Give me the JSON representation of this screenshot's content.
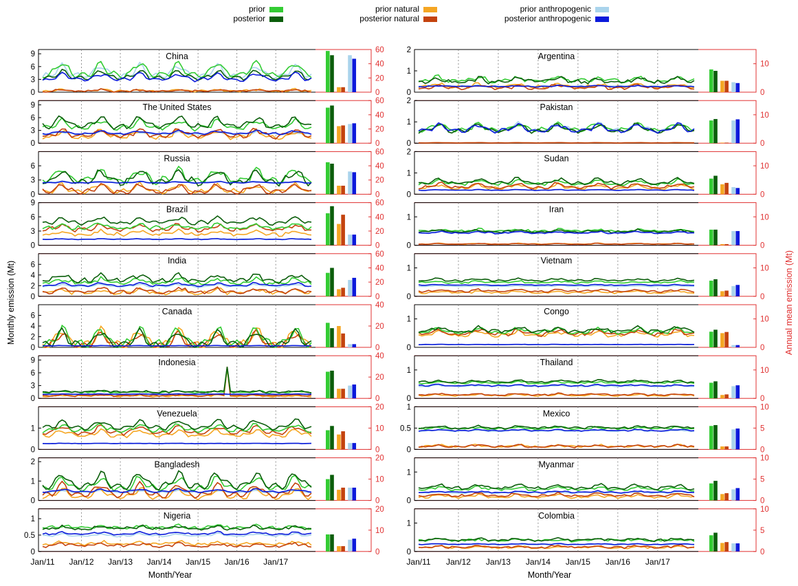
{
  "figure": {
    "y_label_left": "Monthly emission (Mt)",
    "y_label_right": "Annual mean emission (Mt)",
    "x_label": "Month/Year",
    "x_ticks": [
      "Jan/11",
      "Jan/12",
      "Jan/13",
      "Jan/14",
      "Jan/15",
      "Jan/16",
      "Jan/17"
    ]
  },
  "legend": [
    {
      "key": "prior",
      "label": "prior",
      "color": "#33cc33"
    },
    {
      "key": "posterior",
      "label": "posterior",
      "color": "#0b5e0b"
    },
    {
      "key": "prior_natural",
      "label": "prior natural",
      "color": "#f5a623"
    },
    {
      "key": "posterior_natural",
      "label": "posterior natural",
      "color": "#c4430e"
    },
    {
      "key": "prior_anthropogenic",
      "label": "prior anthropogenic",
      "color": "#aad4ec"
    },
    {
      "key": "posterior_anthropogenic",
      "label": "posterior anthropogenic",
      "color": "#0b1adb"
    }
  ],
  "chart_data": [
    {
      "type": "line",
      "title": "China",
      "ylim": [
        0,
        10
      ],
      "yticks": [
        0,
        3,
        6,
        9
      ],
      "rlim": [
        0,
        60
      ],
      "rticks": [
        0,
        20,
        40,
        60
      ],
      "series_params": {
        "prior": [
          5.2,
          2.3,
          0.3
        ],
        "posterior": [
          4.0,
          1.4,
          0.2
        ],
        "prior_natural": [
          0.4,
          0.3,
          0.2
        ],
        "posterior_natural": [
          0.35,
          0.3,
          0.2
        ],
        "prior_anthropogenic": [
          4.8,
          2.0,
          0.2
        ],
        "posterior_anthropogenic": [
          3.5,
          1.1,
          0.2
        ]
      },
      "bars": [
        58,
        52,
        7,
        7,
        52,
        47
      ]
    },
    {
      "type": "line",
      "title": "The United States",
      "ylim": [
        0,
        10
      ],
      "yticks": [
        0,
        3,
        6,
        9
      ],
      "rlim": [
        0,
        60
      ],
      "rticks": [
        0,
        20,
        40,
        60
      ],
      "series_params": {
        "prior": [
          4.3,
          1.5,
          0.3
        ],
        "posterior": [
          4.8,
          1.7,
          0.3
        ],
        "prior_natural": [
          2.0,
          1.2,
          0.3
        ],
        "posterior_natural": [
          2.3,
          1.3,
          0.3
        ],
        "prior_anthropogenic": [
          2.3,
          0.4,
          0.1
        ],
        "posterior_anthropogenic": [
          2.5,
          0.5,
          0.1
        ]
      },
      "bars": [
        50,
        53,
        24,
        25,
        27,
        28
      ]
    },
    {
      "type": "line",
      "title": "Russia",
      "ylim": [
        0,
        9
      ],
      "yticks": [
        0,
        3,
        6
      ],
      "rlim": [
        0,
        60
      ],
      "rticks": [
        0,
        20,
        40,
        60
      ],
      "series_params": {
        "prior": [
          3.8,
          1.8,
          0.4
        ],
        "posterior": [
          3.6,
          2.0,
          0.4
        ],
        "prior_natural": [
          1.2,
          1.2,
          0.3
        ],
        "posterior_natural": [
          1.1,
          1.2,
          0.3
        ],
        "prior_anthropogenic": [
          2.6,
          0.2,
          0.05
        ],
        "posterior_anthropogenic": [
          2.5,
          0.2,
          0.05
        ]
      },
      "bars": [
        45,
        43,
        12,
        12,
        32,
        31
      ]
    },
    {
      "type": "line",
      "title": "Brazil",
      "ylim": [
        0,
        9
      ],
      "yticks": [
        0,
        3,
        6,
        9
      ],
      "rlim": [
        0,
        60
      ],
      "rticks": [
        0,
        20,
        40,
        60
      ],
      "series_params": {
        "prior": [
          4.0,
          0.8,
          0.3
        ],
        "posterior": [
          5.2,
          1.0,
          0.3
        ],
        "prior_natural": [
          2.6,
          0.6,
          0.3
        ],
        "posterior_natural": [
          3.7,
          0.8,
          0.3
        ],
        "prior_anthropogenic": [
          1.3,
          0.1,
          0.05
        ],
        "posterior_anthropogenic": [
          1.3,
          0.1,
          0.05
        ]
      },
      "bars": [
        45,
        55,
        30,
        43,
        15,
        15
      ]
    },
    {
      "type": "line",
      "title": "India",
      "ylim": [
        0,
        8
      ],
      "yticks": [
        0,
        2,
        4,
        6
      ],
      "rlim": [
        0,
        60
      ],
      "rticks": [
        0,
        20,
        40,
        60
      ],
      "series_params": {
        "prior": [
          2.8,
          0.7,
          0.3
        ],
        "posterior": [
          3.4,
          0.9,
          0.3
        ],
        "prior_natural": [
          0.9,
          0.5,
          0.3
        ],
        "posterior_natural": [
          1.1,
          0.6,
          0.3
        ],
        "prior_anthropogenic": [
          2.0,
          0.3,
          0.1
        ],
        "posterior_anthropogenic": [
          2.2,
          0.4,
          0.1
        ]
      },
      "bars": [
        33,
        40,
        10,
        12,
        23,
        26
      ]
    },
    {
      "type": "line",
      "title": "Canada",
      "ylim": [
        0,
        8
      ],
      "yticks": [
        0,
        2,
        4,
        6
      ],
      "rlim": [
        0,
        40
      ],
      "rticks": [
        0,
        20,
        40
      ],
      "series_params": {
        "prior": [
          1.8,
          2.4,
          0.2
        ],
        "posterior": [
          1.5,
          2.0,
          0.2
        ],
        "prior_natural": [
          1.6,
          2.3,
          0.2
        ],
        "posterior_natural": [
          1.3,
          1.9,
          0.2
        ],
        "prior_anthropogenic": [
          0.3,
          0.05,
          0.02
        ],
        "posterior_anthropogenic": [
          0.3,
          0.05,
          0.02
        ]
      },
      "bars": [
        23,
        18,
        20,
        13,
        3,
        3
      ]
    },
    {
      "type": "line",
      "title": "Indonesia",
      "ylim": [
        0,
        10
      ],
      "yticks": [
        0,
        3,
        6,
        9
      ],
      "rlim": [
        0,
        40
      ],
      "rticks": [
        0,
        20,
        40
      ],
      "series_params": {
        "prior": [
          1.5,
          0.2,
          0.2
        ],
        "posterior": [
          1.6,
          0.2,
          0.2
        ],
        "prior_natural": [
          0.6,
          0.2,
          0.2
        ],
        "posterior_natural": [
          0.7,
          0.2,
          0.2
        ],
        "prior_anthropogenic": [
          0.9,
          0.05,
          0.02
        ],
        "posterior_anthropogenic": [
          1.0,
          0.05,
          0.02
        ]
      },
      "bars": [
        25,
        26,
        9,
        9,
        12,
        13
      ],
      "spike_month": 57,
      "spike_value": 7.4
    },
    {
      "type": "line",
      "title": "Venezuela",
      "ylim": [
        0,
        2
      ],
      "yticks": [
        0,
        1
      ],
      "rlim": [
        0,
        20
      ],
      "rticks": [
        0,
        10,
        20
      ],
      "series_params": {
        "prior": [
          1.0,
          0.22,
          0.05
        ],
        "posterior": [
          1.15,
          0.28,
          0.05
        ],
        "prior_natural": [
          0.75,
          0.2,
          0.05
        ],
        "posterior_natural": [
          0.9,
          0.25,
          0.05
        ],
        "prior_anthropogenic": [
          0.28,
          0.01,
          0.01
        ],
        "posterior_anthropogenic": [
          0.28,
          0.01,
          0.01
        ]
      },
      "bars": [
        9,
        11,
        7,
        8.5,
        3,
        3
      ]
    },
    {
      "type": "line",
      "title": "Bangladesh",
      "ylim": [
        0,
        2.2
      ],
      "yticks": [
        0,
        1,
        2
      ],
      "rlim": [
        0,
        20
      ],
      "rticks": [
        0,
        10,
        20
      ],
      "series_params": {
        "prior": [
          0.85,
          0.45,
          0.05
        ],
        "posterior": [
          1.0,
          0.55,
          0.05
        ],
        "prior_natural": [
          0.35,
          0.35,
          0.05
        ],
        "posterior_natural": [
          0.5,
          0.45,
          0.05
        ],
        "prior_anthropogenic": [
          0.45,
          0.08,
          0.02
        ],
        "posterior_anthropogenic": [
          0.5,
          0.1,
          0.02
        ]
      },
      "bars": [
        10,
        12,
        5,
        6,
        6,
        6
      ]
    },
    {
      "type": "line",
      "title": "Nigeria",
      "ylim": [
        0,
        1.3
      ],
      "yticks": [
        0,
        0.5,
        1
      ],
      "rlim": [
        0,
        20
      ],
      "rticks": [
        0,
        10,
        20
      ],
      "series_params": {
        "prior": [
          0.75,
          0.06,
          0.04
        ],
        "posterior": [
          0.72,
          0.06,
          0.04
        ],
        "prior_natural": [
          0.25,
          0.06,
          0.04
        ],
        "posterior_natural": [
          0.2,
          0.06,
          0.04
        ],
        "prior_anthropogenic": [
          0.5,
          0.05,
          0.02
        ],
        "posterior_anthropogenic": [
          0.55,
          0.05,
          0.02
        ]
      },
      "bars": [
        8,
        8,
        2.5,
        2.5,
        5.5,
        6
      ]
    },
    {
      "type": "line",
      "title": "Argentina",
      "ylim": [
        0,
        2
      ],
      "yticks": [
        0,
        1,
        2
      ],
      "rlim": [
        0,
        15
      ],
      "rticks": [
        0,
        10
      ],
      "series_params": {
        "prior": [
          0.6,
          0.15,
          0.08
        ],
        "posterior": [
          0.55,
          0.15,
          0.08
        ],
        "prior_natural": [
          0.3,
          0.12,
          0.06
        ],
        "posterior_natural": [
          0.25,
          0.12,
          0.06
        ],
        "prior_anthropogenic": [
          0.3,
          0.03,
          0.02
        ],
        "posterior_anthropogenic": [
          0.28,
          0.03,
          0.02
        ]
      },
      "bars": [
        8,
        7.5,
        4,
        4,
        3.5,
        3.2
      ]
    },
    {
      "type": "line",
      "title": "Pakistan",
      "ylim": [
        0,
        2
      ],
      "yticks": [
        0,
        1,
        2
      ],
      "rlim": [
        0,
        15
      ],
      "rticks": [
        0,
        10
      ],
      "series_params": {
        "prior": [
          0.75,
          0.25,
          0.05
        ],
        "posterior": [
          0.7,
          0.25,
          0.05
        ],
        "prior_natural": [
          0.02,
          0.01,
          0.0
        ],
        "posterior_natural": [
          0.02,
          0.01,
          0.0
        ],
        "prior_anthropogenic": [
          0.74,
          0.25,
          0.05
        ],
        "posterior_anthropogenic": [
          0.7,
          0.25,
          0.05
        ]
      },
      "bars": [
        8,
        8.5,
        0.2,
        0.2,
        8,
        8.4
      ]
    },
    {
      "type": "line",
      "title": "Sudan",
      "ylim": [
        0,
        2
      ],
      "yticks": [
        0,
        1,
        2
      ],
      "rlim": [
        0,
        15
      ],
      "rticks": [
        0,
        10
      ],
      "series_params": {
        "prior": [
          0.55,
          0.15,
          0.05
        ],
        "posterior": [
          0.6,
          0.18,
          0.05
        ],
        "prior_natural": [
          0.35,
          0.14,
          0.05
        ],
        "posterior_natural": [
          0.4,
          0.16,
          0.05
        ],
        "prior_anthropogenic": [
          0.2,
          0.02,
          0.01
        ],
        "posterior_anthropogenic": [
          0.2,
          0.02,
          0.01
        ]
      },
      "bars": [
        5.5,
        6.5,
        3.5,
        4,
        2.5,
        2.2
      ]
    },
    {
      "type": "line",
      "title": "Iran",
      "ylim": [
        0,
        1.5
      ],
      "yticks": [
        0,
        1
      ],
      "rlim": [
        0,
        15
      ],
      "rticks": [
        0,
        10
      ],
      "series_params": {
        "prior": [
          0.52,
          0.05,
          0.04
        ],
        "posterior": [
          0.5,
          0.05,
          0.03
        ],
        "prior_natural": [
          0.05,
          0.02,
          0.01
        ],
        "posterior_natural": [
          0.05,
          0.02,
          0.01
        ],
        "prior_anthropogenic": [
          0.47,
          0.04,
          0.02
        ],
        "posterior_anthropogenic": [
          0.45,
          0.04,
          0.02
        ]
      },
      "bars": [
        5.5,
        5.5,
        0.4,
        0.4,
        5,
        5
      ]
    },
    {
      "type": "line",
      "title": "Vietnam",
      "ylim": [
        0,
        1.5
      ],
      "yticks": [
        0,
        1
      ],
      "rlim": [
        0,
        15
      ],
      "rticks": [
        0,
        10
      ],
      "series_params": {
        "prior": [
          0.5,
          0.04,
          0.03
        ],
        "posterior": [
          0.58,
          0.05,
          0.03
        ],
        "prior_natural": [
          0.15,
          0.05,
          0.03
        ],
        "posterior_natural": [
          0.2,
          0.05,
          0.03
        ],
        "prior_anthropogenic": [
          0.36,
          0.02,
          0.01
        ],
        "posterior_anthropogenic": [
          0.4,
          0.02,
          0.01
        ]
      },
      "bars": [
        5.5,
        6,
        1.8,
        2,
        3.6,
        4
      ]
    },
    {
      "type": "line",
      "title": "Congo",
      "ylim": [
        0,
        1.5
      ],
      "yticks": [
        0,
        1
      ],
      "rlim": [
        0,
        15
      ],
      "rticks": [
        0,
        10
      ],
      "series_params": {
        "prior": [
          0.58,
          0.12,
          0.05
        ],
        "posterior": [
          0.62,
          0.13,
          0.05
        ],
        "prior_natural": [
          0.48,
          0.11,
          0.05
        ],
        "posterior_natural": [
          0.52,
          0.12,
          0.05
        ],
        "prior_anthropogenic": [
          0.1,
          0.005,
          0.005
        ],
        "posterior_anthropogenic": [
          0.1,
          0.005,
          0.005
        ]
      },
      "bars": [
        5.5,
        6.2,
        5,
        5.4,
        0.8,
        0.8
      ]
    },
    {
      "type": "line",
      "title": "Thailand",
      "ylim": [
        0,
        1.5
      ],
      "yticks": [
        0,
        1
      ],
      "rlim": [
        0,
        15
      ],
      "rticks": [
        0,
        10
      ],
      "series_params": {
        "prior": [
          0.56,
          0.04,
          0.03
        ],
        "posterior": [
          0.6,
          0.05,
          0.03
        ],
        "prior_natural": [
          0.12,
          0.04,
          0.02
        ],
        "posterior_natural": [
          0.14,
          0.04,
          0.02
        ],
        "prior_anthropogenic": [
          0.44,
          0.03,
          0.02
        ],
        "posterior_anthropogenic": [
          0.46,
          0.03,
          0.02
        ]
      },
      "bars": [
        5.5,
        6,
        1.2,
        1.4,
        4.3,
        4.6
      ]
    },
    {
      "type": "line",
      "title": "Mexico",
      "ylim": [
        0,
        1
      ],
      "yticks": [
        0,
        0.5,
        1
      ],
      "rlim": [
        0,
        10
      ],
      "rticks": [
        0,
        5,
        10
      ],
      "series_params": {
        "prior": [
          0.5,
          0.03,
          0.02
        ],
        "posterior": [
          0.52,
          0.03,
          0.02
        ],
        "prior_natural": [
          0.08,
          0.03,
          0.02
        ],
        "posterior_natural": [
          0.08,
          0.03,
          0.02
        ],
        "prior_anthropogenic": [
          0.44,
          0.02,
          0.01
        ],
        "posterior_anthropogenic": [
          0.45,
          0.02,
          0.01
        ]
      },
      "bars": [
        5.5,
        5.7,
        0.7,
        0.7,
        4.7,
        4.9
      ]
    },
    {
      "type": "line",
      "title": "Myanmar",
      "ylim": [
        0,
        1.5
      ],
      "yticks": [
        0,
        1
      ],
      "rlim": [
        0,
        10
      ],
      "rticks": [
        0,
        5,
        10
      ],
      "series_params": {
        "prior": [
          0.42,
          0.08,
          0.04
        ],
        "posterior": [
          0.48,
          0.1,
          0.04
        ],
        "prior_natural": [
          0.15,
          0.07,
          0.03
        ],
        "posterior_natural": [
          0.2,
          0.08,
          0.03
        ],
        "prior_anthropogenic": [
          0.28,
          0.03,
          0.02
        ],
        "posterior_anthropogenic": [
          0.3,
          0.03,
          0.02
        ]
      },
      "bars": [
        4,
        4.6,
        1.5,
        1.7,
        2.6,
        2.9
      ]
    },
    {
      "type": "line",
      "title": "Colombia",
      "ylim": [
        0,
        1.5
      ],
      "yticks": [
        0,
        1
      ],
      "rlim": [
        0,
        10
      ],
      "rticks": [
        0,
        5,
        10
      ],
      "series_params": {
        "prior": [
          0.4,
          0.04,
          0.04
        ],
        "posterior": [
          0.42,
          0.05,
          0.04
        ],
        "prior_natural": [
          0.15,
          0.04,
          0.03
        ],
        "posterior_natural": [
          0.17,
          0.05,
          0.03
        ],
        "prior_anthropogenic": [
          0.25,
          0.02,
          0.01
        ],
        "posterior_anthropogenic": [
          0.26,
          0.02,
          0.01
        ]
      },
      "bars": [
        3.8,
        4.4,
        2,
        2.2,
        1.9,
        1.9
      ]
    }
  ]
}
